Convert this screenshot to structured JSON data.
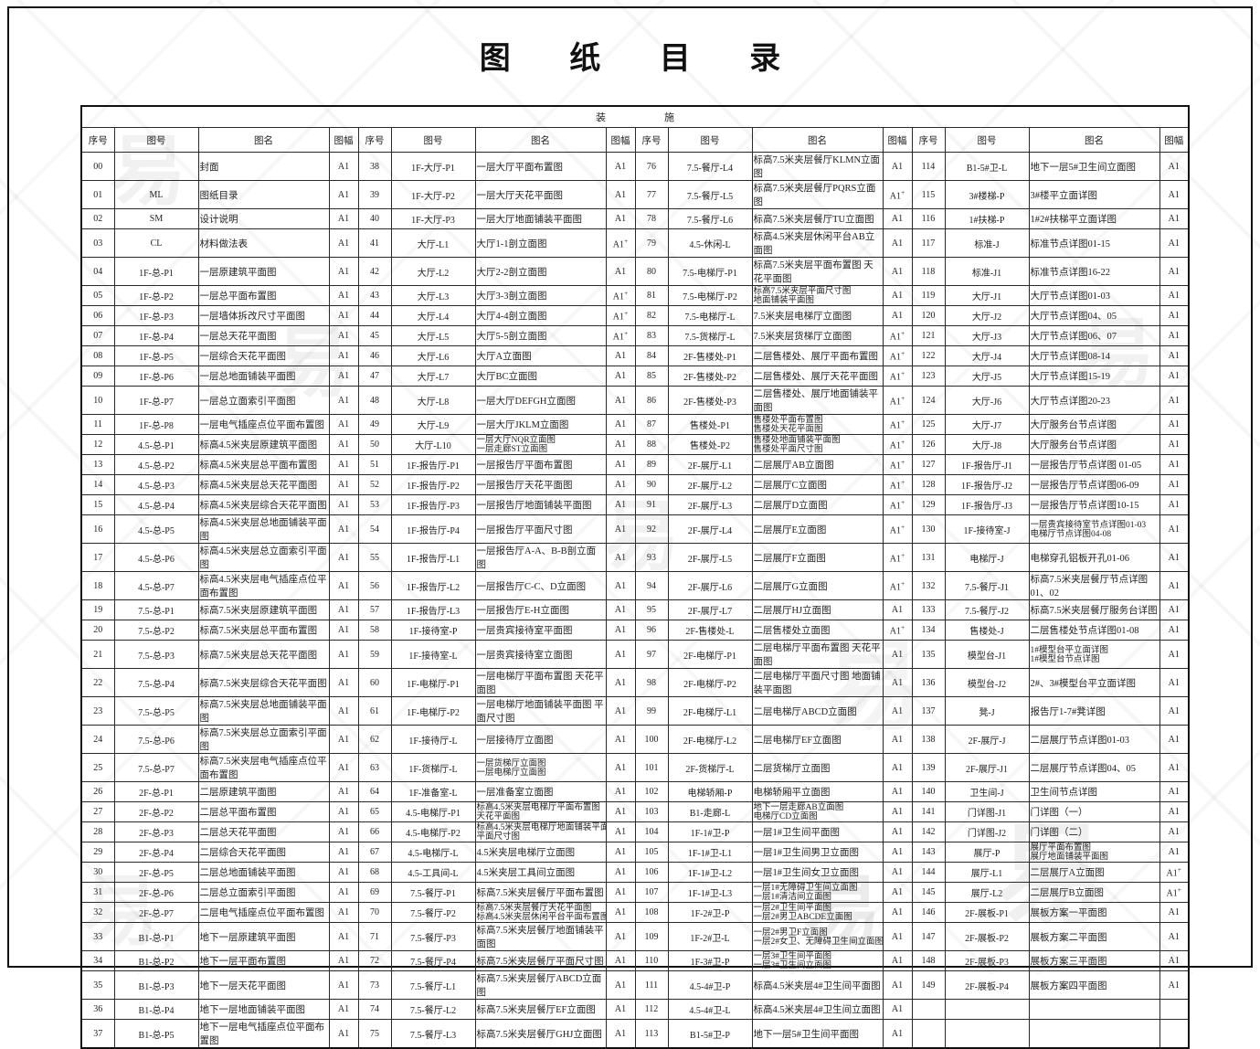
{
  "title": "图 纸 目 录",
  "watermark": {
    "glyph": "易"
  },
  "table": {
    "section_label": {
      "left": "装",
      "right": "施"
    },
    "columns": [
      "序号",
      "图号",
      "图名",
      "图幅"
    ],
    "groups": [
      {
        "rows": [
          [
            "00",
            "",
            "封面",
            "A1"
          ],
          [
            "01",
            "ML",
            "图纸目录",
            "A1"
          ],
          [
            "02",
            "SM",
            "设计说明",
            "A1"
          ],
          [
            "03",
            "CL",
            "材料做法表",
            "A1"
          ],
          [
            "04",
            "1F-总-P1",
            "一层原建筑平面图",
            "A1"
          ],
          [
            "05",
            "1F-总-P2",
            "一层总平面布置图",
            "A1"
          ],
          [
            "06",
            "1F-总-P3",
            "一层墙体拆改尺寸平面图",
            "A1"
          ],
          [
            "07",
            "1F-总-P4",
            "一层总天花平面图",
            "A1"
          ],
          [
            "08",
            "1F-总-P5",
            "一层综合天花平面图",
            "A1"
          ],
          [
            "09",
            "1F-总-P6",
            "一层总地面铺装平面图",
            "A1"
          ],
          [
            "10",
            "1F-总-P7",
            "一层总立面索引平面图",
            "A1"
          ],
          [
            "11",
            "1F-总-P8",
            "一层电气插座点位平面布置图",
            "A1"
          ],
          [
            "12",
            "4.5-总-P1",
            "标高4.5米夹层原建筑平面图",
            "A1"
          ],
          [
            "13",
            "4.5-总-P2",
            "标高4.5米夹层总平面布置图",
            "A1"
          ],
          [
            "14",
            "4.5-总-P3",
            "标高4.5米夹层总天花平面图",
            "A1"
          ],
          [
            "15",
            "4.5-总-P4",
            "标高4.5米夹层综合天花平面图",
            "A1"
          ],
          [
            "16",
            "4.5-总-P5",
            "标高4.5米夹层总地面铺装平面图",
            "A1"
          ],
          [
            "17",
            "4.5-总-P6",
            "标高4.5米夹层总立面索引平面图",
            "A1"
          ],
          [
            "18",
            "4.5-总-P7",
            "标高4.5米夹层电气插座点位平面布置图",
            "A1"
          ],
          [
            "19",
            "7.5-总-P1",
            "标高7.5米夹层原建筑平面图",
            "A1"
          ],
          [
            "20",
            "7.5-总-P2",
            "标高7.5米夹层总平面布置图",
            "A1"
          ],
          [
            "21",
            "7.5-总-P3",
            "标高7.5米夹层总天花平面图",
            "A1"
          ],
          [
            "22",
            "7.5-总-P4",
            "标高7.5米夹层综合天花平面图",
            "A1"
          ],
          [
            "23",
            "7.5-总-P5",
            "标高7.5米夹层总地面铺装平面图",
            "A1"
          ],
          [
            "24",
            "7.5-总-P6",
            "标高7.5米夹层总立面索引平面图",
            "A1"
          ],
          [
            "25",
            "7.5-总-P7",
            "标高7.5米夹层电气插座点位平面布置图",
            "A1"
          ],
          [
            "26",
            "2F-总-P1",
            "二层原建筑平面图",
            "A1"
          ],
          [
            "27",
            "2F-总-P2",
            "二层总平面布置图",
            "A1"
          ],
          [
            "28",
            "2F-总-P3",
            "二层总天花平面图",
            "A1"
          ],
          [
            "29",
            "2F-总-P4",
            "二层综合天花平面图",
            "A1"
          ],
          [
            "30",
            "2F-总-P5",
            "二层总地面铺装平面图",
            "A1"
          ],
          [
            "31",
            "2F-总-P6",
            "二层总立面索引平面图",
            "A1"
          ],
          [
            "32",
            "2F-总-P7",
            "二层电气插座点位平面布置图",
            "A1"
          ],
          [
            "33",
            "B1-总-P1",
            "地下一层原建筑平面图",
            "A1"
          ],
          [
            "34",
            "B1-总-P2",
            "地下一层平面布置图",
            "A1"
          ],
          [
            "35",
            "B1-总-P3",
            "地下一层天花平面图",
            "A1"
          ],
          [
            "36",
            "B1-总-P4",
            "地下一层地面铺装平面图",
            "A1"
          ],
          [
            "37",
            "B1-总-P5",
            "地下一层电气插座点位平面布置图",
            "A1"
          ]
        ]
      },
      {
        "rows": [
          [
            "38",
            "1F-大厅-P1",
            "一层大厅平面布置图",
            "A1"
          ],
          [
            "39",
            "1F-大厅-P2",
            "一层大厅天花平面图",
            "A1"
          ],
          [
            "40",
            "1F-大厅-P3",
            "一层大厅地面铺装平面图",
            "A1"
          ],
          [
            "41",
            "大厅-L1",
            "大厅1-1剖立面图",
            "A1+"
          ],
          [
            "42",
            "大厅-L2",
            "大厅2-2剖立面图",
            "A1"
          ],
          [
            "43",
            "大厅-L3",
            "大厅3-3剖立面图",
            "A1+"
          ],
          [
            "44",
            "大厅-L4",
            "大厅4-4剖立面图",
            "A1+"
          ],
          [
            "45",
            "大厅-L5",
            "大厅5-5剖立面图",
            "A1+"
          ],
          [
            "46",
            "大厅-L6",
            "大厅A立面图",
            "A1"
          ],
          [
            "47",
            "大厅-L7",
            "大厅BC立面图",
            "A1"
          ],
          [
            "48",
            "大厅-L8",
            "一层大厅DEFGH立面图",
            "A1"
          ],
          [
            "49",
            "大厅-L9",
            "一层大厅JKLM立面图",
            "A1"
          ],
          [
            "50",
            "大厅-L10",
            "一层大厅NQR立面图\n一层走廊ST立面图",
            "A1"
          ],
          [
            "51",
            "1F-报告厅-P1",
            "一层报告厅平面布置图",
            "A1"
          ],
          [
            "52",
            "1F-报告厅-P2",
            "一层报告厅天花平面图",
            "A1"
          ],
          [
            "53",
            "1F-报告厅-P3",
            "一层报告厅地面铺装平面图",
            "A1"
          ],
          [
            "54",
            "1F-报告厅-P4",
            "一层报告厅平面尺寸图",
            "A1"
          ],
          [
            "55",
            "1F-报告厅-L1",
            "一层报告厅A-A、B-B剖立面图",
            "A1"
          ],
          [
            "56",
            "1F-报告厅-L2",
            "一层报告厅C-C、D立面图",
            "A1"
          ],
          [
            "57",
            "1F-报告厅-L3",
            "一层报告厅E-H立面图",
            "A1"
          ],
          [
            "58",
            "1F-接待室-P",
            "一层贵宾接待室平面图",
            "A1"
          ],
          [
            "59",
            "1F-接待室-L",
            "一层贵宾接待室立面图",
            "A1"
          ],
          [
            "60",
            "1F-电梯厅-P1",
            "一层电梯厅平面布置图 天花平面图",
            "A1"
          ],
          [
            "61",
            "1F-电梯厅-P2",
            "一层电梯厅地面铺装平面图 平面尺寸图",
            "A1"
          ],
          [
            "62",
            "1F-接待厅-L",
            "一层接待厅立面图",
            "A1"
          ],
          [
            "63",
            "1F-货梯厅-L",
            "一层货梯厅立面图\n一层电梯厅立面图",
            "A1"
          ],
          [
            "64",
            "1F-准备室-L",
            "一层准备室立面图",
            "A1"
          ],
          [
            "65",
            "4.5-电梯厅-P1",
            "标高4.5米夹层电梯厅平面布置图\n天花平面图",
            "A1"
          ],
          [
            "66",
            "4.5-电梯厅-P2",
            "标高4.5米夹层电梯厅地面铺装平面图\n平面尺寸图",
            "A1"
          ],
          [
            "67",
            "4.5-电梯厅-L",
            "4.5米夹层电梯厅立面图",
            "A1"
          ],
          [
            "68",
            "4.5-工具间-L",
            "4.5米夹层工具间立面图",
            "A1"
          ],
          [
            "69",
            "7.5-餐厅-P1",
            "标高7.5米夹层餐厅平面布置图",
            "A1"
          ],
          [
            "70",
            "7.5-餐厅-P2",
            "标高7.5米夹层餐厅天花平面图\n标高4.5米夹层休闲平台平面布置图",
            "A1"
          ],
          [
            "71",
            "7.5-餐厅-P3",
            "标高7.5米夹层餐厅地面铺装平面图",
            "A1"
          ],
          [
            "72",
            "7.5-餐厅-P4",
            "标高7.5米夹层餐厅平面尺寸图",
            "A1"
          ],
          [
            "73",
            "7.5-餐厅-L1",
            "标高7.5米夹层餐厅ABCD立面图",
            "A1"
          ],
          [
            "74",
            "7.5-餐厅-L2",
            "标高7.5米夹层餐厅EF立面图",
            "A1"
          ],
          [
            "75",
            "7.5-餐厅-L3",
            "标高7.5米夹层餐厅GHJ立面图",
            "A1"
          ]
        ]
      },
      {
        "rows": [
          [
            "76",
            "7.5-餐厅-L4",
            "标高7.5米夹层餐厅KLMN立面图",
            "A1"
          ],
          [
            "77",
            "7.5-餐厅-L5",
            "标高7.5米夹层餐厅PQRS立面图",
            "A1+"
          ],
          [
            "78",
            "7.5-餐厅-L6",
            "标高7.5米夹层餐厅TU立面图",
            "A1"
          ],
          [
            "79",
            "4.5-休闲-L",
            "标高4.5米夹层休闲平台AB立面图",
            "A1"
          ],
          [
            "80",
            "7.5-电梯厅-P1",
            "标高7.5米夹层平面布置图 天花平面图",
            "A1"
          ],
          [
            "81",
            "7.5-电梯厅-P2",
            "标高7.5米夹层平面尺寸图\n地面铺装平面图",
            "A1"
          ],
          [
            "82",
            "7.5-电梯厅-L",
            "7.5米夹层电梯厅立面图",
            "A1"
          ],
          [
            "83",
            "7.5-货梯厅-L",
            "7.5米夹层货梯厅立面图",
            "A1+"
          ],
          [
            "84",
            "2F-售楼处-P1",
            "二层售楼处、展厅平面布置图",
            "A1+"
          ],
          [
            "85",
            "2F-售楼处-P2",
            "二层售楼处、展厅天花平面图",
            "A1+"
          ],
          [
            "86",
            "2F-售楼处-P3",
            "二层售楼处、展厅地面铺装平面图",
            "A1+"
          ],
          [
            "87",
            "售楼处-P1",
            "售楼处平面布置图\n售楼处天花平面图",
            "A1+"
          ],
          [
            "88",
            "售楼处-P2",
            "售楼处地面铺装平面图\n售楼处平面尺寸图",
            "A1+"
          ],
          [
            "89",
            "2F-展厅-L1",
            "二层展厅AB立面图",
            "A1+"
          ],
          [
            "90",
            "2F-展厅-L2",
            "二层展厅C立面图",
            "A1+"
          ],
          [
            "91",
            "2F-展厅-L3",
            "二层展厅D立面图",
            "A1+"
          ],
          [
            "92",
            "2F-展厅-L4",
            "二层展厅E立面图",
            "A1+"
          ],
          [
            "93",
            "2F-展厅-L5",
            "二层展厅F立面图",
            "A1+"
          ],
          [
            "94",
            "2F-展厅-L6",
            "二层展厅G立面图",
            "A1+"
          ],
          [
            "95",
            "2F-展厅-L7",
            "二层展厅HJ立面图",
            "A1"
          ],
          [
            "96",
            "2F-售楼处-L",
            "二层售楼处立面图",
            "A1+"
          ],
          [
            "97",
            "2F-电梯厅-P1",
            "二层电梯厅平面布置图 天花平面图",
            "A1"
          ],
          [
            "98",
            "2F-电梯厅-P2",
            "二层电梯厅平面尺寸图 地面铺装平面图",
            "A1"
          ],
          [
            "99",
            "2F-电梯厅-L1",
            "二层电梯厅ABCD立面图",
            "A1"
          ],
          [
            "100",
            "2F-电梯厅-L2",
            "二层电梯厅EF立面图",
            "A1"
          ],
          [
            "101",
            "2F-货梯厅-L",
            "二层货梯厅立面图",
            "A1"
          ],
          [
            "102",
            "电梯轿厢-P",
            "电梯轿厢平立面图",
            "A1"
          ],
          [
            "103",
            "B1-走廊-L",
            "地下一层走廊AB立面图\n电梯厅CD立面图",
            "A1"
          ],
          [
            "104",
            "1F-1#卫-P",
            "一层1#卫生间平面图",
            "A1"
          ],
          [
            "105",
            "1F-1#卫-L1",
            "一层1#卫生间男卫立面图",
            "A1"
          ],
          [
            "106",
            "1F-1#卫-L2",
            "一层1#卫生间女卫立面图",
            "A1"
          ],
          [
            "107",
            "1F-1#卫-L3",
            "一层1#无障碍卫生间立面图\n一层1#清洁间立面图",
            "A1"
          ],
          [
            "108",
            "1F-2#卫-P",
            "一层2#卫生间平面图\n一层2#男卫ABCDE立面图",
            "A1"
          ],
          [
            "109",
            "1F-2#卫-L",
            "一层2#男卫F立面图\n一层2#女卫、无障碍卫生间立面图",
            "A1"
          ],
          [
            "110",
            "1F-3#卫-P",
            "一层3#卫生间平面图\n一层3#卫生间立面图",
            "A1"
          ],
          [
            "111",
            "4.5-4#卫-P",
            "标高4.5米夹层4#卫生间平面图",
            "A1"
          ],
          [
            "112",
            "4.5-4#卫-L",
            "标高4.5米夹层4#卫生间立面图",
            "A1"
          ],
          [
            "113",
            "B1-5#卫-P",
            "地下一层5#卫生间平面图",
            "A1"
          ]
        ]
      },
      {
        "rows": [
          [
            "114",
            "B1-5#卫-L",
            "地下一层5#卫生间立面图",
            "A1"
          ],
          [
            "115",
            "3#楼梯-P",
            "3#楼平立面详图",
            "A1"
          ],
          [
            "116",
            "1#扶梯-P",
            "1#2#扶梯平立面详图",
            "A1"
          ],
          [
            "117",
            "标准-J",
            "标准节点详图01-15",
            "A1"
          ],
          [
            "118",
            "标准-J1",
            "标准节点详图16-22",
            "A1"
          ],
          [
            "119",
            "大厅-J1",
            "大厅节点详图01-03",
            "A1"
          ],
          [
            "120",
            "大厅-J2",
            "大厅节点详图04、05",
            "A1"
          ],
          [
            "121",
            "大厅-J3",
            "大厅节点详图06、07",
            "A1"
          ],
          [
            "122",
            "大厅-J4",
            "大厅节点详图08-14",
            "A1"
          ],
          [
            "123",
            "大厅-J5",
            "大厅节点详图15-19",
            "A1"
          ],
          [
            "124",
            "大厅-J6",
            "大厅节点详图20-23",
            "A1"
          ],
          [
            "125",
            "大厅-J7",
            "大厅服务台节点详图",
            "A1"
          ],
          [
            "126",
            "大厅-J8",
            "大厅服务台节点详图",
            "A1"
          ],
          [
            "127",
            "1F-报告厅-J1",
            "一层报告厅节点详图 01-05",
            "A1"
          ],
          [
            "128",
            "1F-报告厅-J2",
            "一层报告厅节点详图06-09",
            "A1"
          ],
          [
            "129",
            "1F-报告厅-J3",
            "一层报告厅节点详图10-15",
            "A1"
          ],
          [
            "130",
            "1F-接待室-J",
            "一层贵宾接待室节点详图01-03\n电梯厅节点详图04-08",
            "A1"
          ],
          [
            "131",
            "电梯厅-J",
            "电梯穿孔铝板开孔01-06",
            "A1"
          ],
          [
            "132",
            "7.5-餐厅-J1",
            "标高7.5米夹层餐厅节点详图01、02",
            "A1"
          ],
          [
            "133",
            "7.5-餐厅-J2",
            "标高7.5米夹层餐厅服务台详图",
            "A1"
          ],
          [
            "134",
            "售楼处-J",
            "二层售楼处节点详图01-08",
            "A1"
          ],
          [
            "135",
            "模型台-J1",
            "1#模型台平立面详图\n1#模型台节点详图",
            "A1"
          ],
          [
            "136",
            "模型台-J2",
            "2#、3#模型台平立面详图",
            "A1"
          ],
          [
            "137",
            "凳-J",
            "报告厅1-7#凳详图",
            "A1"
          ],
          [
            "138",
            "2F-展厅-J",
            "二层展厅节点详图01-03",
            "A1"
          ],
          [
            "139",
            "2F-展厅-J1",
            "二层展厅节点详图04、05",
            "A1"
          ],
          [
            "140",
            "卫生间-J",
            "卫生间节点详图",
            "A1"
          ],
          [
            "141",
            "门详图-J1",
            "门详图（一）",
            "A1"
          ],
          [
            "142",
            "门详图-J2",
            "门详图（二）",
            "A1"
          ],
          [
            "143",
            "展厅-P",
            "展厅平面布置图\n展厅地面铺装平面图",
            "A1"
          ],
          [
            "144",
            "展厅-L1",
            "二层展厅A立面图",
            "A1+"
          ],
          [
            "145",
            "展厅-L2",
            "二层展厅B立面图",
            "A1+"
          ],
          [
            "146",
            "2F-展板-P1",
            "展板方案一平面图",
            "A1"
          ],
          [
            "147",
            "2F-展板-P2",
            "展板方案二平面图",
            "A1"
          ],
          [
            "148",
            "2F-展板-P3",
            "展板方案三平面图",
            "A1"
          ],
          [
            "149",
            "2F-展板-P4",
            "展板方案四平面图",
            "A1"
          ],
          [
            "",
            "",
            "",
            ""
          ],
          [
            "",
            "",
            "",
            ""
          ]
        ]
      }
    ]
  }
}
